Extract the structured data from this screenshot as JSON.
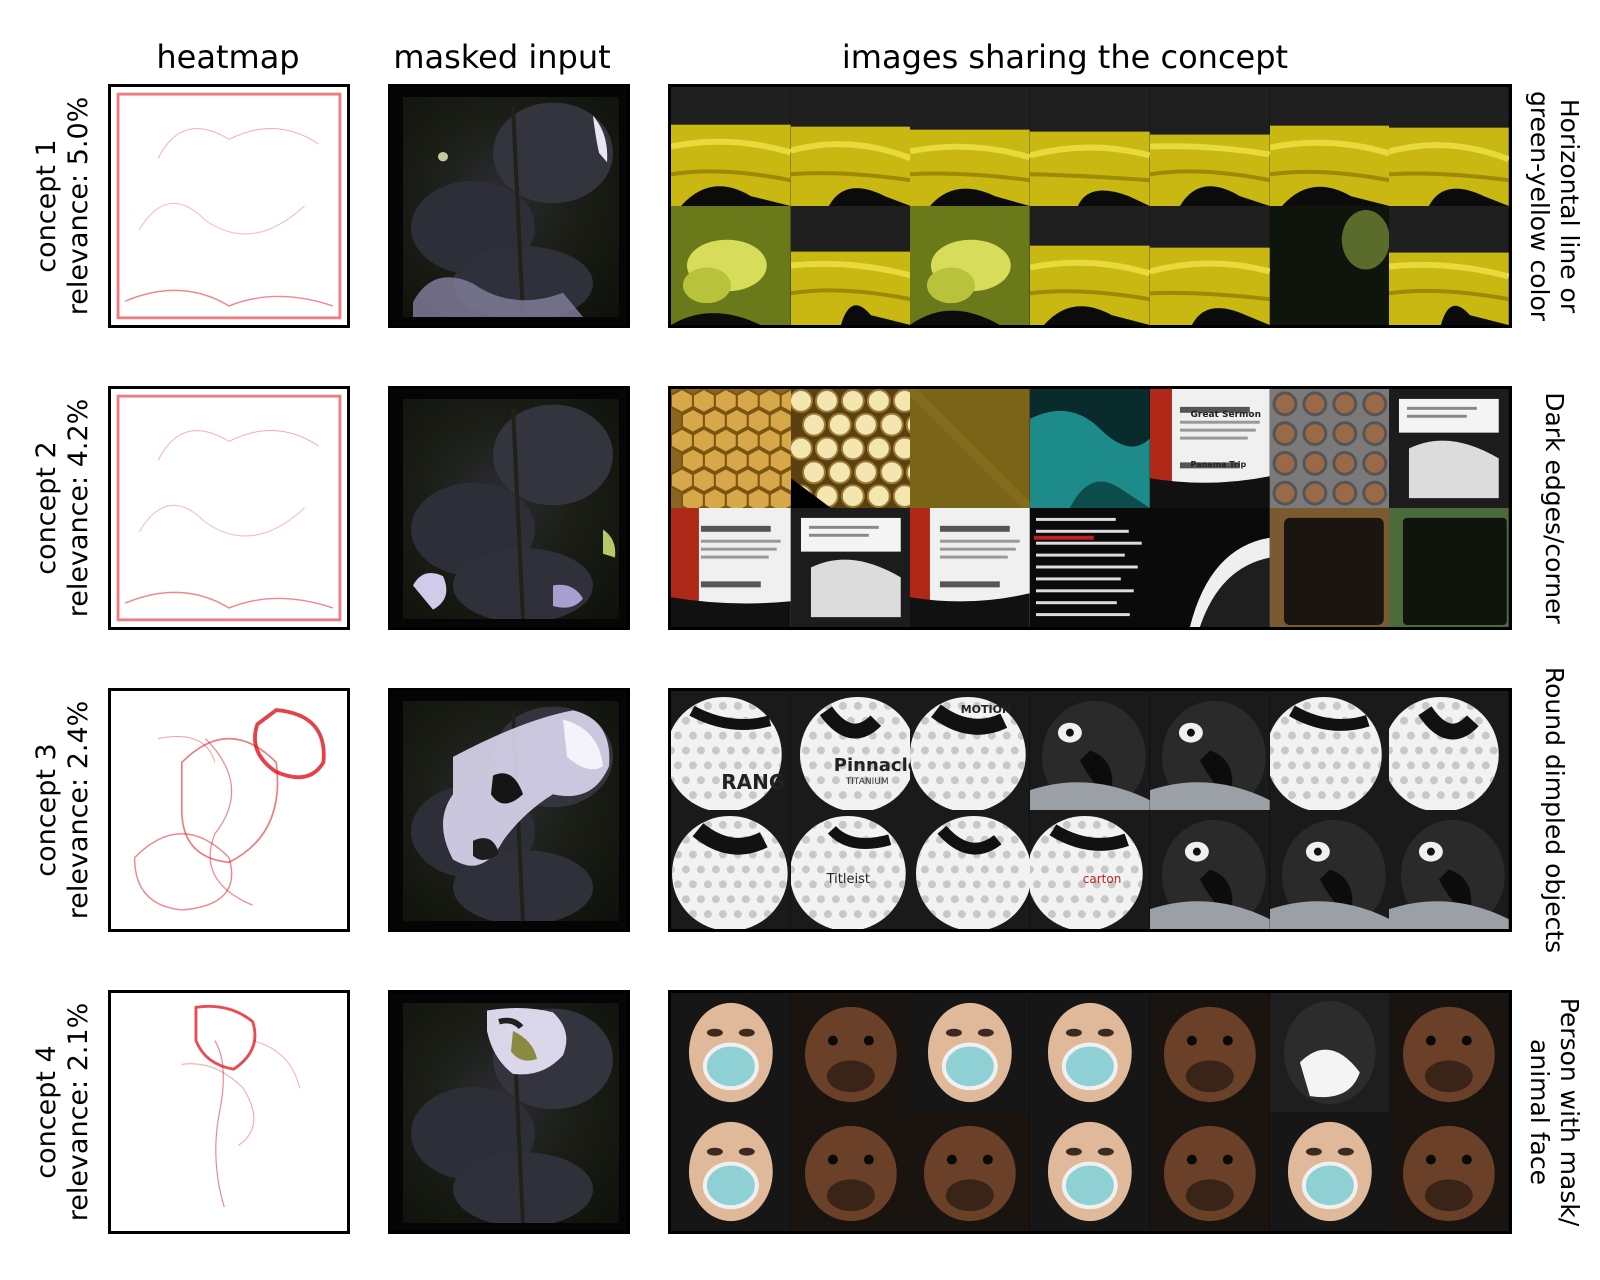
{
  "column_titles": {
    "heatmap": "heatmap",
    "masked": "masked input",
    "images": "images sharing the concept"
  },
  "rows": [
    {
      "concept": "concept 1",
      "relevance": "relevance: 5.0%",
      "label_lines": [
        "Horizontal line or",
        "green-yellow color"
      ],
      "heatmap_icon": "edge-heatmap-icon",
      "tiles": [
        "yellow-field",
        "yellow-field",
        "yellow-field",
        "yellow-field",
        "yellow-field",
        "yellow-field",
        "yellow-field",
        "yellow-flower",
        "yellow-field",
        "yellow-flower",
        "yellow-field",
        "yellow-field",
        "dark-green",
        "yellow-field"
      ]
    },
    {
      "concept": "concept 2",
      "relevance": "relevance: 4.2%",
      "label_lines": [
        "Dark edges/corner"
      ],
      "heatmap_icon": "edge-heatmap-icon",
      "tiles": [
        "honeycomb",
        "bubbles",
        "olive",
        "teal",
        "document",
        "dimples-grid",
        "dark-doc",
        "document",
        "dark-doc",
        "document",
        "dark-text",
        "dark-corner",
        "brown-dark",
        "green-dark"
      ]
    },
    {
      "concept": "concept 3",
      "relevance": "relevance: 2.4%",
      "label_lines": [
        "Round dimpled objects"
      ],
      "heatmap_icon": "flower-heatmap-icon",
      "tiles": [
        "golf-ball",
        "golf-ball",
        "golf-ball",
        "parrot",
        "parrot",
        "golf-ball",
        "golf-ball",
        "golf-ball",
        "golf-ball",
        "golf-ball",
        "golf-ball",
        "parrot",
        "parrot",
        "parrot"
      ]
    },
    {
      "concept": "concept 4",
      "relevance": "relevance: 2.1%",
      "label_lines": [
        "Person with mask/",
        "animal face"
      ],
      "heatmap_icon": "stamen-heatmap-icon",
      "tiles": [
        "face-mask",
        "animal-face",
        "face-mask",
        "face-mask",
        "animal-face",
        "dark-face",
        "animal-face",
        "face-mask",
        "animal-face",
        "animal-face",
        "face-mask",
        "animal-face",
        "face-mask",
        "animal-face"
      ]
    }
  ],
  "tile_text": {
    "golf_brand_1": "RANG",
    "golf_brand_2": "Pinnacle",
    "golf_brand_3": "TITANIUM",
    "golf_brand_4": "MOTION",
    "golf_brand_5": "Titleist",
    "golf_brand_6": "carton",
    "doc_title_1": "Great Sermon",
    "doc_title_2": "Panama Trip"
  },
  "colors": {
    "heatmap_red": "#e0101a",
    "frame": "#000000",
    "field_yellow": "#d8c816",
    "sky_grey": "#2a2a2a"
  }
}
